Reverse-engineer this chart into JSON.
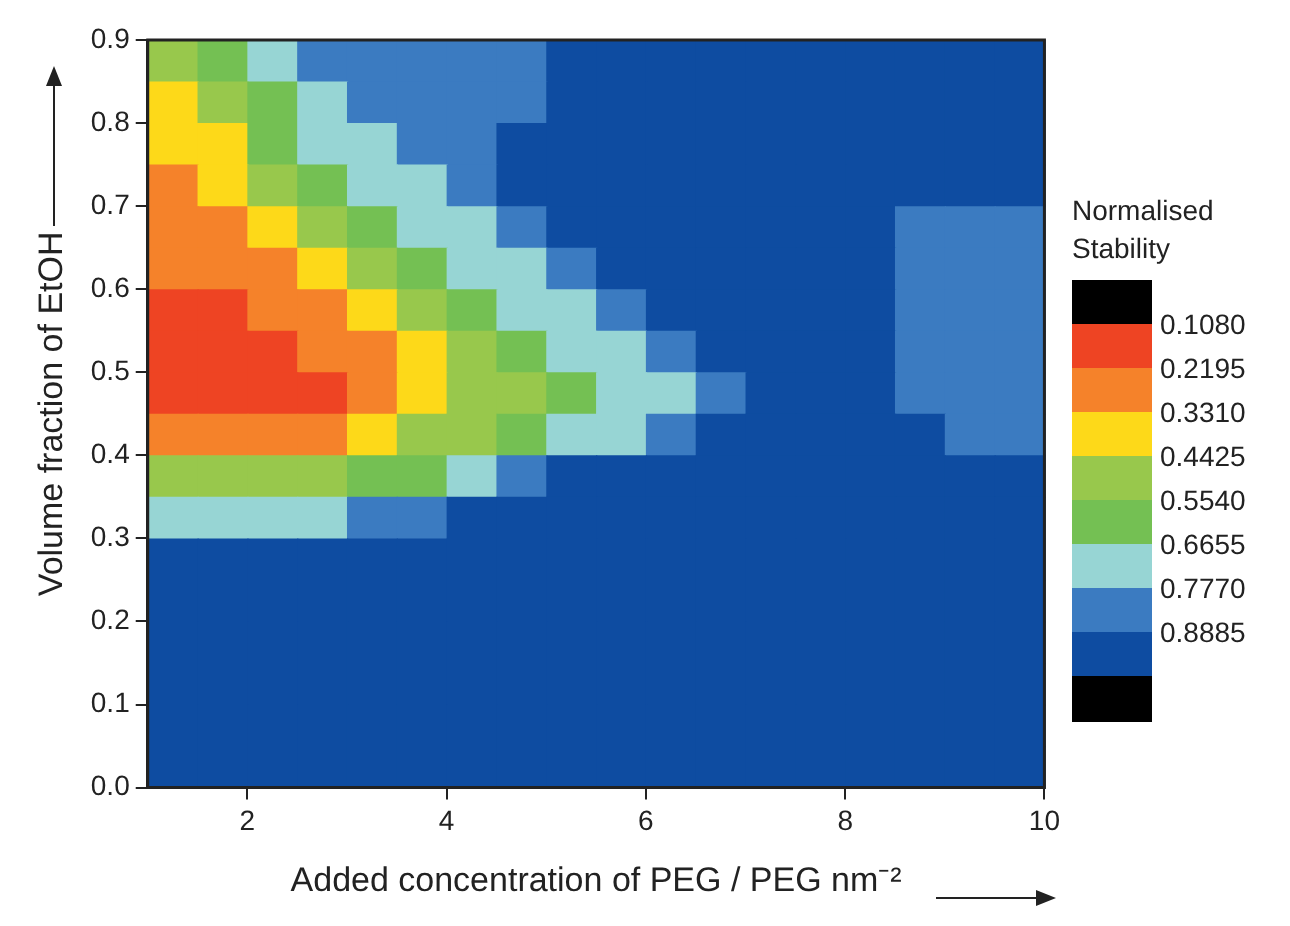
{
  "chart_data": {
    "type": "heatmap",
    "xlabel": "Added concentration of PEG / PEG nm⁻²",
    "ylabel": "Volume fraction of EtOH",
    "clabel": "Normalised Stability",
    "xlim": [
      1,
      10
    ],
    "xticks": [
      2,
      4,
      6,
      8,
      10
    ],
    "ylim": [
      0,
      0.9
    ],
    "yticks": [
      {
        "value": 0,
        "label": "0.0"
      },
      0.1,
      0.2,
      0.3,
      0.4,
      0.5,
      0.6,
      0.7,
      0.8,
      0.9
    ],
    "clim": [
      -0.0035,
      1.1115
    ],
    "cticks": [
      {
        "value": 0.108,
        "label": "0.1080"
      },
      0.2195,
      {
        "value": 0.331,
        "label": "0.3310"
      },
      0.4425,
      {
        "value": 0.554,
        "label": "0.5540"
      },
      0.6655,
      {
        "value": 0.777,
        "label": "0.7770"
      },
      0.8885
    ],
    "colors": [
      "#000000",
      "#ee4423",
      "#f5822a",
      "#fdd919",
      "#98c84c",
      "#74c053",
      "#97d5d4",
      "#3b7bc1",
      "#0e4ca1",
      "#000000"
    ],
    "grid": false,
    "cells": [
      [
        0.5,
        0.61,
        0.72,
        0.83,
        0.83,
        0.83,
        0.83,
        0.83,
        0.94,
        0.94,
        0.94,
        0.94,
        0.94,
        0.94,
        0.94,
        0.94,
        0.94,
        0.94
      ],
      [
        0.39,
        0.5,
        0.61,
        0.72,
        0.83,
        0.83,
        0.83,
        0.83,
        0.94,
        0.94,
        0.94,
        0.94,
        0.94,
        0.94,
        0.94,
        0.94,
        0.94,
        0.94
      ],
      [
        0.39,
        0.39,
        0.61,
        0.72,
        0.72,
        0.83,
        0.83,
        0.94,
        0.94,
        0.94,
        0.94,
        0.94,
        0.94,
        0.94,
        0.94,
        0.94,
        0.94,
        0.94
      ],
      [
        0.28,
        0.39,
        0.5,
        0.61,
        0.72,
        0.72,
        0.83,
        0.94,
        0.94,
        0.94,
        0.94,
        0.94,
        0.94,
        0.94,
        0.94,
        0.94,
        0.94,
        0.94
      ],
      [
        0.28,
        0.28,
        0.39,
        0.5,
        0.61,
        0.72,
        0.72,
        0.83,
        0.94,
        0.94,
        0.94,
        0.94,
        0.94,
        0.94,
        0.94,
        0.83,
        0.83,
        0.83
      ],
      [
        0.28,
        0.28,
        0.28,
        0.39,
        0.5,
        0.61,
        0.72,
        0.72,
        0.83,
        0.94,
        0.94,
        0.94,
        0.94,
        0.94,
        0.94,
        0.83,
        0.83,
        0.83
      ],
      [
        0.16,
        0.16,
        0.28,
        0.28,
        0.39,
        0.5,
        0.61,
        0.72,
        0.72,
        0.83,
        0.94,
        0.94,
        0.94,
        0.94,
        0.94,
        0.83,
        0.83,
        0.83
      ],
      [
        0.16,
        0.16,
        0.16,
        0.28,
        0.28,
        0.39,
        0.5,
        0.61,
        0.72,
        0.72,
        0.83,
        0.94,
        0.94,
        0.94,
        0.94,
        0.83,
        0.83,
        0.83
      ],
      [
        0.16,
        0.16,
        0.16,
        0.16,
        0.28,
        0.39,
        0.5,
        0.5,
        0.61,
        0.72,
        0.72,
        0.83,
        0.94,
        0.94,
        0.94,
        0.83,
        0.83,
        0.83
      ],
      [
        0.28,
        0.28,
        0.28,
        0.28,
        0.39,
        0.5,
        0.5,
        0.61,
        0.72,
        0.72,
        0.83,
        0.94,
        0.94,
        0.94,
        0.94,
        0.94,
        0.83,
        0.83
      ],
      [
        0.5,
        0.5,
        0.5,
        0.5,
        0.61,
        0.61,
        0.72,
        0.83,
        0.94,
        0.94,
        0.94,
        0.94,
        0.94,
        0.94,
        0.94,
        0.94,
        0.94,
        0.94
      ],
      [
        0.72,
        0.72,
        0.72,
        0.72,
        0.83,
        0.83,
        0.94,
        0.94,
        0.94,
        0.94,
        0.94,
        0.94,
        0.94,
        0.94,
        0.94,
        0.94,
        0.94,
        0.94
      ],
      [
        0.94,
        0.94,
        0.94,
        0.94,
        0.94,
        0.94,
        0.94,
        0.94,
        0.94,
        0.94,
        0.94,
        0.94,
        0.94,
        0.94,
        0.94,
        0.94,
        0.94,
        0.94
      ],
      [
        0.94,
        0.94,
        0.94,
        0.94,
        0.94,
        0.94,
        0.94,
        0.94,
        0.94,
        0.94,
        0.94,
        0.94,
        0.94,
        0.94,
        0.94,
        0.94,
        0.94,
        0.94
      ],
      [
        0.94,
        0.94,
        0.94,
        0.94,
        0.94,
        0.94,
        0.94,
        0.94,
        0.94,
        0.94,
        0.94,
        0.94,
        0.94,
        0.94,
        0.94,
        0.94,
        0.94,
        0.94
      ],
      [
        0.94,
        0.94,
        0.94,
        0.94,
        0.94,
        0.94,
        0.94,
        0.94,
        0.94,
        0.94,
        0.94,
        0.94,
        0.94,
        0.94,
        0.94,
        0.94,
        0.94,
        0.94
      ],
      [
        0.94,
        0.94,
        0.94,
        0.94,
        0.94,
        0.94,
        0.94,
        0.94,
        0.94,
        0.94,
        0.94,
        0.94,
        0.94,
        0.94,
        0.94,
        0.94,
        0.94,
        0.94
      ],
      [
        0.94,
        0.94,
        0.94,
        0.94,
        0.94,
        0.94,
        0.94,
        0.94,
        0.94,
        0.94,
        0.94,
        0.94,
        0.94,
        0.94,
        0.94,
        0.94,
        0.94,
        0.94
      ]
    ]
  }
}
